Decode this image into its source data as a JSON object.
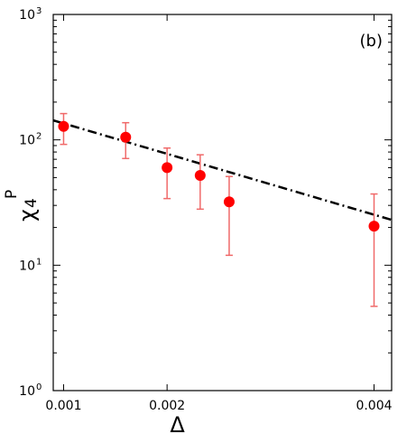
{
  "chart_data": {
    "type": "scatter",
    "panel_label": "(b)",
    "xlabel": "Δ",
    "ylabel_main": "χ",
    "ylabel_sub": "4",
    "ylabel_sup": "P",
    "xlim": [
      0.0009,
      0.00417
    ],
    "ylim": [
      1,
      1000
    ],
    "yscale": "log",
    "grid": false,
    "x_ticks": [
      {
        "value": 0.001,
        "label": "0.001"
      },
      {
        "value": 0.002,
        "label": "0.002"
      },
      {
        "value": 0.004,
        "label": "0.004"
      }
    ],
    "y_ticks": [
      {
        "value": 1,
        "base": "10",
        "exp": "0"
      },
      {
        "value": 10,
        "base": "10",
        "exp": "1"
      },
      {
        "value": 100,
        "base": "10",
        "exp": "2"
      },
      {
        "value": 1000,
        "base": "10",
        "exp": "3"
      }
    ],
    "points": [
      {
        "x": 0.001,
        "y": 128,
        "err_low": 92,
        "err_high": 162
      },
      {
        "x": 0.0016,
        "y": 105,
        "err_low": 71,
        "err_high": 137
      },
      {
        "x": 0.002,
        "y": 60,
        "err_low": 34,
        "err_high": 86
      },
      {
        "x": 0.00232,
        "y": 52,
        "err_low": 28,
        "err_high": 76
      },
      {
        "x": 0.0026,
        "y": 32,
        "err_low": 12,
        "err_high": 51
      },
      {
        "x": 0.004,
        "y": 20.5,
        "err_low": 4.7,
        "err_high": 37
      }
    ],
    "fit_line": {
      "style": "dash-dot",
      "x": [
        0.0009,
        0.00417
      ],
      "y": [
        143,
        23
      ]
    },
    "colors": {
      "marker": "#ff0000",
      "errorbar": "#f06a6a",
      "fit": "#000000"
    }
  }
}
